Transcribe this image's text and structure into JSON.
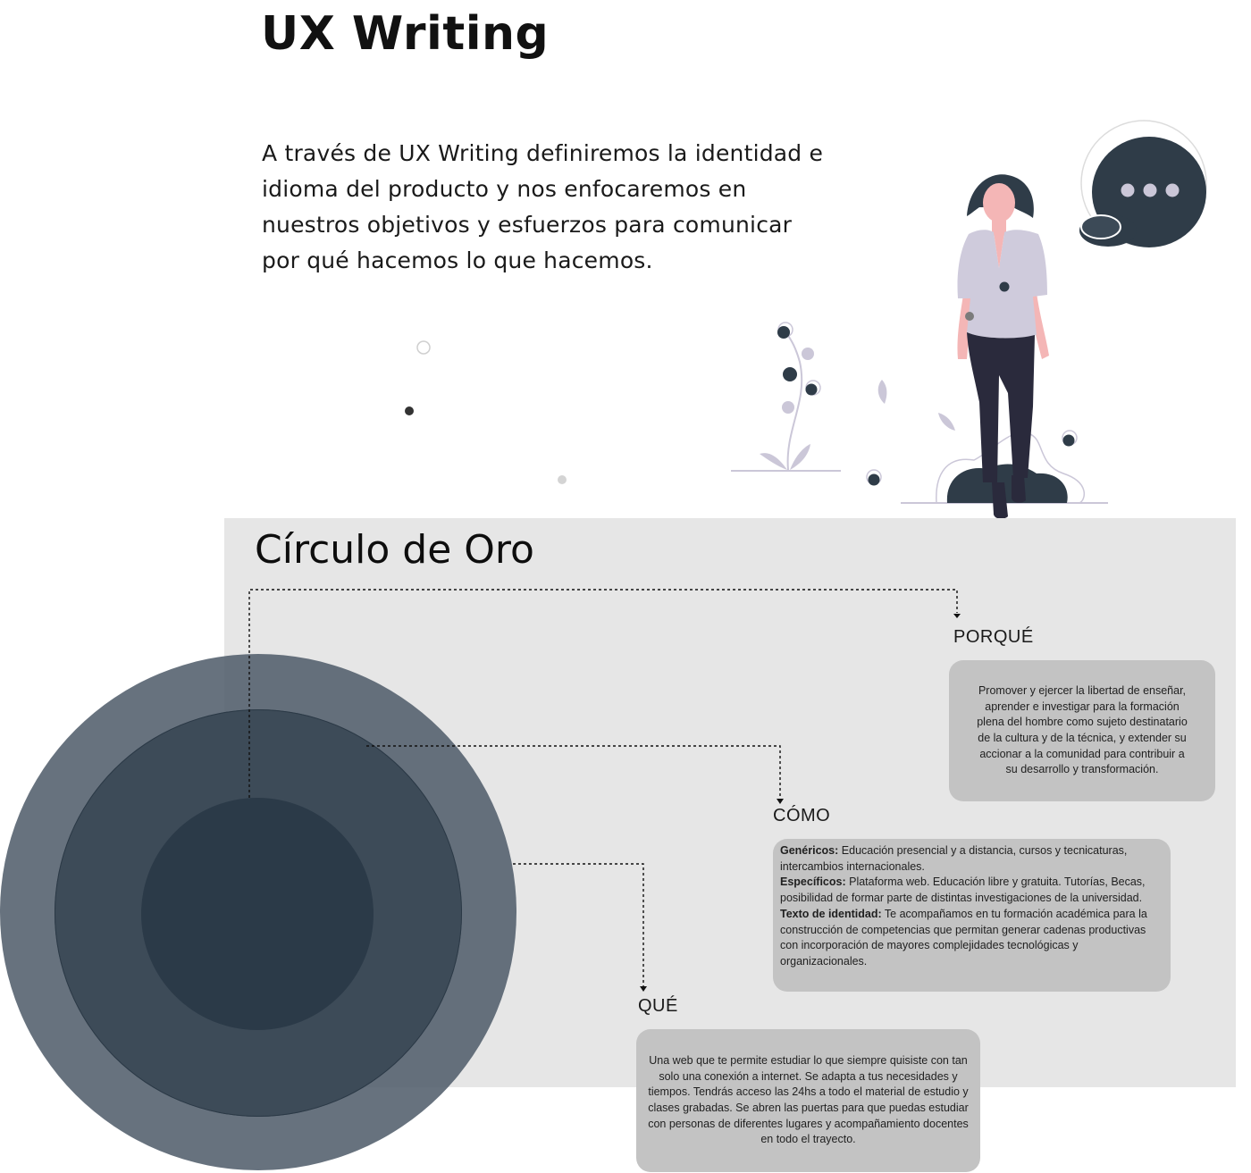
{
  "header": {
    "title": "UX Writing",
    "intro": "A través de UX Writing definiremos la identidad e idioma del producto y nos enfocaremos en nuestros objetivos y esfuerzos para comunicar por qué hacemos lo que hacemos."
  },
  "golden_circle": {
    "title": "Círculo de Oro",
    "porque": {
      "label": "PORQUÉ",
      "text": "Promover y ejercer la libertad de enseñar, aprender e investigar para la formación plena del hombre como sujeto destinatario de la cultura y de la técnica, y extender su accionar a la comunidad para contribuir a su desarrollo y transformación."
    },
    "como": {
      "label": "CÓMO",
      "items": [
        {
          "term": "Genéricos:",
          "text": " Educación presencial y a distancia, cursos y tecnicaturas, intercambios internacionales."
        },
        {
          "term": "Específicos:",
          "text": " Plataforma web.  Educación libre y gratuita. Tutorías, Becas, posibilidad de formar parte de distintas investigaciones de la universidad."
        },
        {
          "term": "Texto de identidad:",
          "text": " Te acompañamos en tu formación académica para la construcción de competencias que permitan generar cadenas productivas con incorporación de mayores complejidades tecnológicas y organizacionales."
        }
      ]
    },
    "que": {
      "label": "QUÉ",
      "text": "Una web que te permite estudiar lo que siempre quisiste con tan solo una conexión a internet. Se adapta a tus necesidades y tiempos. Tendrás acceso las 24hs a todo el material de estudio y clases grabadas. Se abren las puertas para que puedas estudiar con personas de diferentes lugares y acompañamiento docentes en todo el trayecto."
    }
  },
  "colors": {
    "panel_bg": "#e6e6e6",
    "card_bg": "#c3c3c3",
    "ring_outer": "#525f6c",
    "ring_middle": "#3d4b58",
    "ring_inner": "#2b3a48",
    "illustration_dark": "#2f3c48",
    "illustration_lavender": "#cbc7d8"
  },
  "icons": [
    "woman-illustration",
    "speech-bubble-icon",
    "plant-illustration"
  ]
}
